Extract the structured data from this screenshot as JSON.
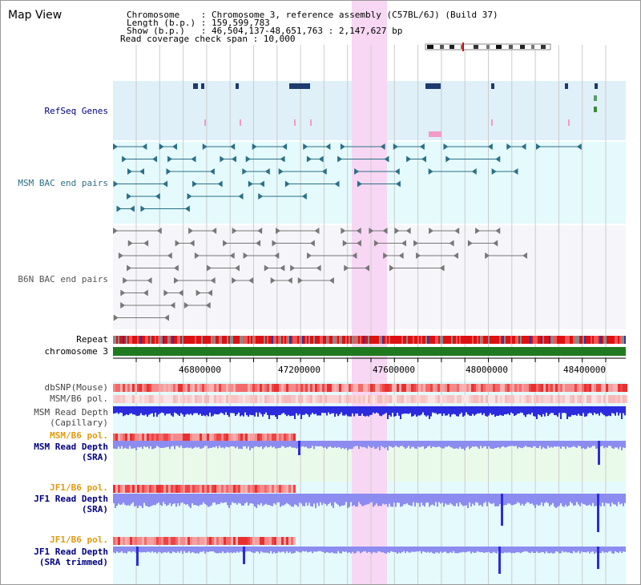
{
  "view": {
    "title": "Map View",
    "info_lines": [
      "Chromosome    : Chromosome 3, reference assembly (C57BL/6J) (Build 37)",
      "Length (b.p.) : 159,599,783",
      "Show (b.p.)   : 46,504,137-48,651,763 : 2,147,627 bp",
      "Read coverage check span : 10,000"
    ]
  },
  "tracks": {
    "refseq": "RefSeq Genes",
    "msm_bac": "MSM BAC end pairs",
    "b6n_bac": "B6N BAC end pairs",
    "repeat": "Repeat",
    "chromosome": "chromosome 3",
    "dbsnp": "dbSNP(Mouse)",
    "msm_b6_pol_1": "MSM/B6 pol.",
    "msm_read_depth_cap_1": "MSM Read Depth",
    "msm_read_depth_cap_2": "(Capillary)",
    "msm_b6_pol_2": "MSM/B6 pol.",
    "msm_read_depth_sra_1": "MSM Read Depth",
    "msm_read_depth_sra_2": "(SRA)",
    "jf1_b6_pol_1": "JF1/B6 pol.",
    "jf1_read_depth_sra_1": "JF1 Read Depth",
    "jf1_read_depth_sra_2": "(SRA)",
    "jf1_b6_pol_2": "JF1/B6 pol.",
    "jf1_read_depth_trim_1": "JF1 Read Depth",
    "jf1_read_depth_trim_2": "(SRA trimmed)"
  },
  "axis": {
    "ticks": [
      "46800000",
      "47200000",
      "47600000",
      "48000000",
      "48400000"
    ]
  },
  "colors": {
    "gene_navy": "#1e3a6e",
    "msm_teal": "#2a6f86",
    "b6n_gray": "#777777",
    "highlight_pink": "#f7d7f3",
    "chromosome_green": "#1f7a1f",
    "read_depth_blue": "#2b2bdd",
    "read_depth_light": "#8c8cf0",
    "label_navy": "#000080",
    "label_teal": "#2f6f86",
    "label_orange": "#e29a10"
  }
}
